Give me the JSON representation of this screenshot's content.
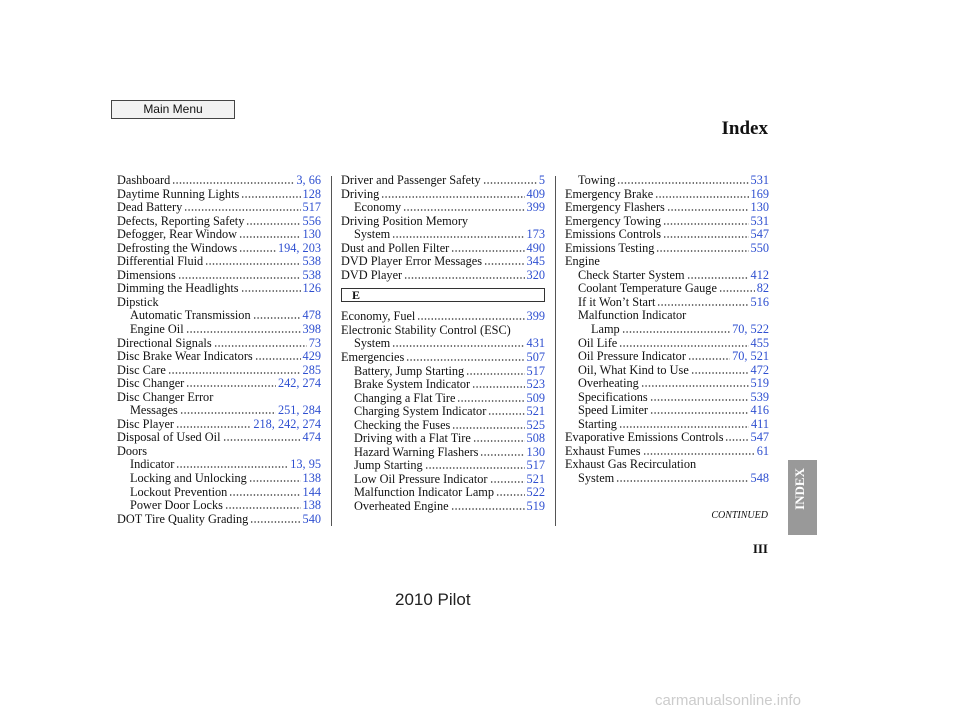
{
  "header": {
    "button": "Main Menu",
    "title": "Index"
  },
  "columns": [
    {
      "entries": [
        {
          "text": "Dashboard",
          "page": "3, 66"
        },
        {
          "text": "Daytime Running Lights",
          "page": "128"
        },
        {
          "text": "Dead Battery",
          "page": "517"
        },
        {
          "text": "Defects, Reporting Safety",
          "page": "556"
        },
        {
          "text": "Defogger, Rear Window",
          "page": "130"
        },
        {
          "text": "Defrosting the Windows",
          "page": "194, 203"
        },
        {
          "text": "Differential Fluid",
          "page": "538"
        },
        {
          "text": "Dimensions",
          "page": "538"
        },
        {
          "text": "Dimming the Headlights",
          "page": "126"
        },
        {
          "text": "Dipstick"
        },
        {
          "text": "Automatic Transmission",
          "page": "478",
          "level": 1
        },
        {
          "text": "Engine Oil",
          "page": "398",
          "level": 1
        },
        {
          "text": "Directional Signals",
          "page": "73"
        },
        {
          "text": "Disc Brake Wear Indicators",
          "page": "429"
        },
        {
          "text": "Disc Care",
          "page": "285"
        },
        {
          "text": "Disc Changer",
          "page": "242, 274"
        },
        {
          "text": "Disc Changer Error"
        },
        {
          "text": "Messages",
          "page": "251, 284",
          "level": 1
        },
        {
          "text": "Disc Player",
          "page": "218, 242, 274"
        },
        {
          "text": "Disposal of Used Oil",
          "page": "474"
        },
        {
          "text": "Doors"
        },
        {
          "text": "Indicator",
          "page": "13, 95",
          "level": 1
        },
        {
          "text": "Locking and Unlocking",
          "page": "138",
          "level": 1
        },
        {
          "text": "Lockout Prevention",
          "page": "144",
          "level": 1
        },
        {
          "text": "Power Door Locks",
          "page": "138",
          "level": 1
        },
        {
          "text": "DOT Tire Quality Grading",
          "page": "540"
        }
      ]
    },
    {
      "entries": [
        {
          "text": "Driver and Passenger Safety",
          "page": "5"
        },
        {
          "text": "Driving",
          "page": "409"
        },
        {
          "text": "Economy",
          "page": "399",
          "level": 1
        },
        {
          "text": "Driving Position Memory"
        },
        {
          "text": "System",
          "page": "173",
          "level": 1
        },
        {
          "text": "Dust and Pollen Filter",
          "page": "490"
        },
        {
          "text": "DVD Player Error Messages",
          "page": "345"
        },
        {
          "text": "DVD Player",
          "page": "320"
        }
      ],
      "section": "E",
      "section_entries": [
        {
          "text": "Economy, Fuel",
          "page": "399"
        },
        {
          "text": "Electronic Stability Control (ESC)"
        },
        {
          "text": "System",
          "page": "431",
          "level": 1
        },
        {
          "text": "Emergencies",
          "page": "507"
        },
        {
          "text": "Battery, Jump Starting",
          "page": "517",
          "level": 1
        },
        {
          "text": "Brake System Indicator",
          "page": "523",
          "level": 1
        },
        {
          "text": "Changing a Flat Tire",
          "page": "509",
          "level": 1
        },
        {
          "text": "Charging System Indicator",
          "page": "521",
          "level": 1
        },
        {
          "text": "Checking the Fuses",
          "page": "525",
          "level": 1
        },
        {
          "text": "Driving with a Flat Tire",
          "page": "508",
          "level": 1
        },
        {
          "text": "Hazard Warning Flashers",
          "page": "130",
          "level": 1
        },
        {
          "text": "Jump Starting",
          "page": "517",
          "level": 1
        },
        {
          "text": "Low Oil Pressure Indicator",
          "page": "521",
          "level": 1
        },
        {
          "text": "Malfunction Indicator Lamp",
          "page": "522",
          "level": 1
        },
        {
          "text": "Overheated Engine",
          "page": "519",
          "level": 1
        }
      ]
    },
    {
      "entries": [
        {
          "text": "Towing",
          "page": "531",
          "level": 1
        },
        {
          "text": "Emergency Brake",
          "page": "169"
        },
        {
          "text": "Emergency Flashers",
          "page": "130"
        },
        {
          "text": "Emergency Towing",
          "page": "531"
        },
        {
          "text": "Emissions Controls",
          "page": "547"
        },
        {
          "text": "Emissions Testing",
          "page": "550"
        },
        {
          "text": "Engine"
        },
        {
          "text": "Check Starter System",
          "page": "412",
          "level": 1
        },
        {
          "text": "Coolant Temperature Gauge",
          "page": "82",
          "level": 1
        },
        {
          "text": "If it Won’t Start",
          "page": "516",
          "level": 1
        },
        {
          "text": "Malfunction Indicator",
          "level": 1
        },
        {
          "text": "Lamp",
          "page": "70, 522",
          "level": 2
        },
        {
          "text": "Oil Life",
          "page": "455",
          "level": 1
        },
        {
          "text": "Oil Pressure Indicator",
          "page": "70, 521",
          "level": 1
        },
        {
          "text": "Oil, What Kind to Use",
          "page": "472",
          "level": 1
        },
        {
          "text": "Overheating",
          "page": "519",
          "level": 1
        },
        {
          "text": "Specifications",
          "page": "539",
          "level": 1
        },
        {
          "text": "Speed Limiter",
          "page": "416",
          "level": 1
        },
        {
          "text": "Starting",
          "page": "411",
          "level": 1
        },
        {
          "text": "Evaporative Emissions Controls",
          "page": "547"
        },
        {
          "text": "Exhaust Fumes",
          "page": "61"
        },
        {
          "text": "Exhaust Gas Recirculation"
        },
        {
          "text": "System",
          "page": "548",
          "level": 1
        }
      ]
    }
  ],
  "footer": {
    "continued": "CONTINUED",
    "tab": "INDEX",
    "page_number": "III",
    "model": "2010 Pilot",
    "watermark": "carmanualsonline.info"
  }
}
